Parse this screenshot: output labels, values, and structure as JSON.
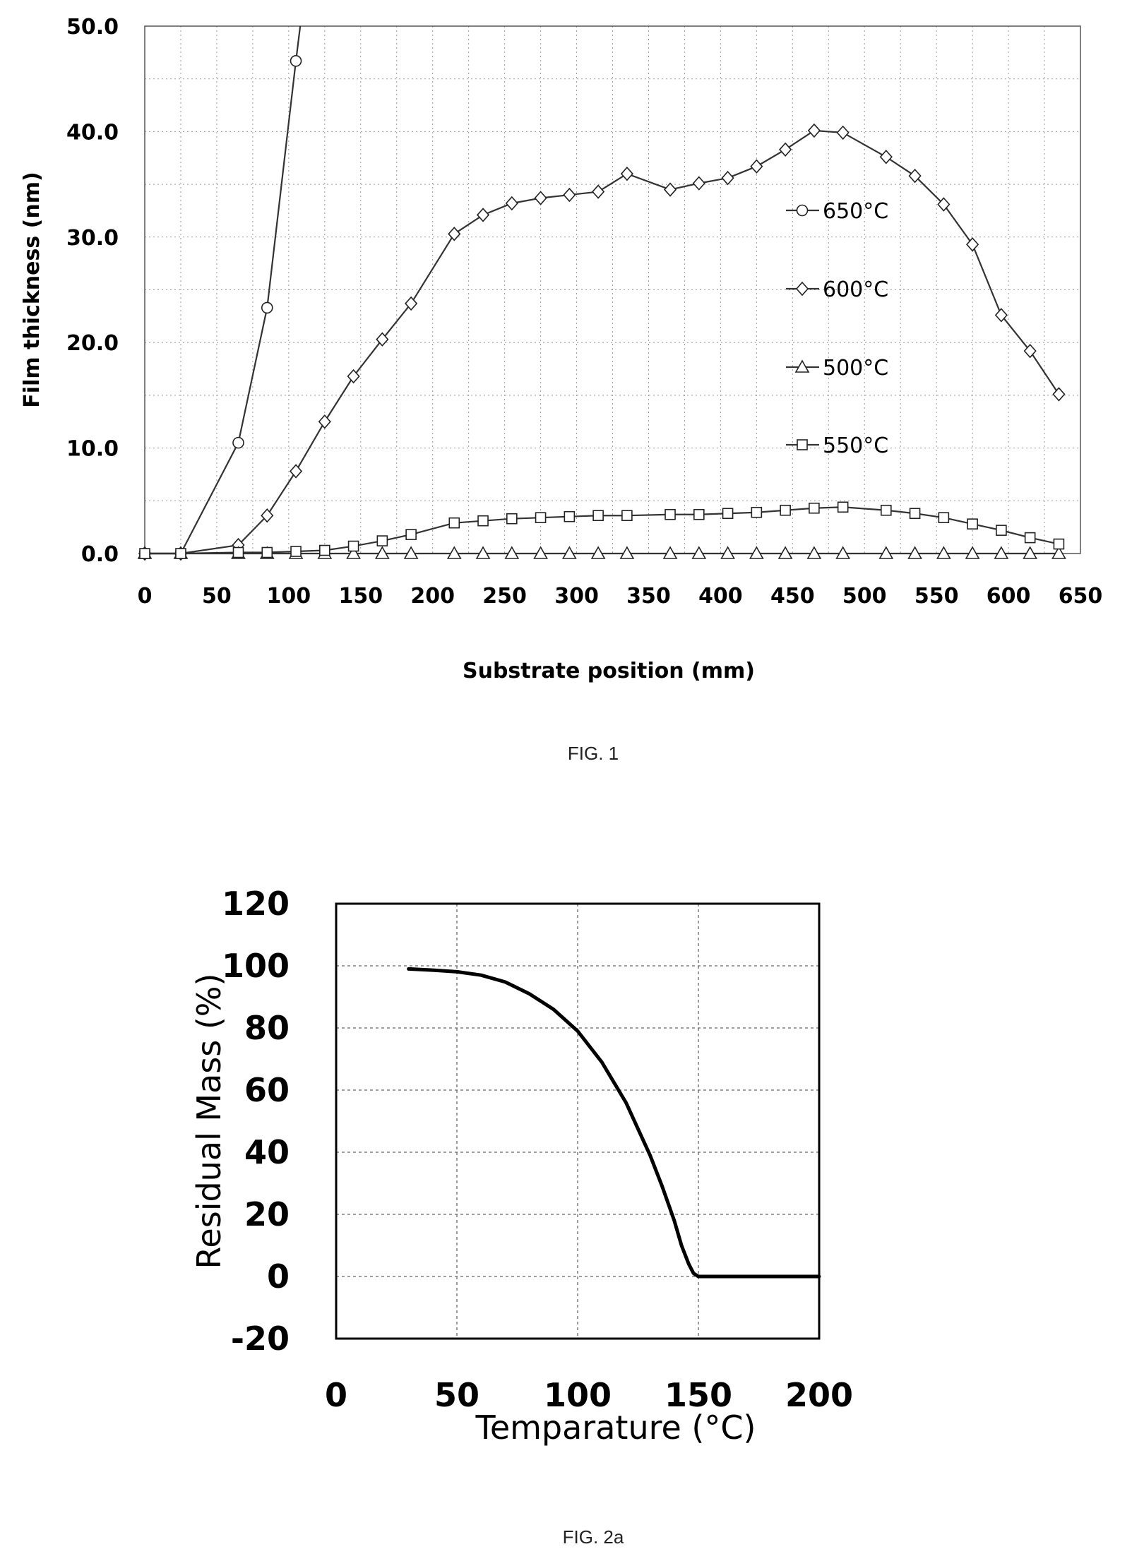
{
  "chart_data": [
    {
      "type": "line",
      "xlabel": "Substrate position (mm)",
      "ylabel": "Film thickness (nm)",
      "xlim": [
        0,
        650
      ],
      "ylim": [
        0,
        50
      ],
      "x_ticks": [
        "0",
        "50",
        "100",
        "150",
        "200",
        "250",
        "300",
        "350",
        "400",
        "450",
        "500",
        "550",
        "600",
        "650"
      ],
      "y_ticks": [
        "0.0",
        "10.0",
        "20.0",
        "30.0",
        "40.0",
        "50.0"
      ],
      "grid": true,
      "legend_position": "right",
      "series": [
        {
          "name": "650°C",
          "marker": "circle",
          "x": [
            0,
            25,
            65,
            85,
            105,
            108
          ],
          "y": [
            0,
            0,
            10.5,
            23.3,
            46.7,
            50
          ]
        },
        {
          "name": "600°C",
          "marker": "diamond",
          "x": [
            0,
            25,
            65,
            85,
            105,
            125,
            145,
            165,
            185,
            215,
            235,
            255,
            275,
            295,
            315,
            335,
            365,
            385,
            405,
            425,
            445,
            465,
            485,
            515,
            535,
            555,
            575,
            595,
            615,
            635
          ],
          "y": [
            0,
            0,
            0.8,
            3.6,
            7.8,
            12.5,
            16.8,
            20.3,
            23.7,
            30.3,
            32.1,
            33.2,
            33.7,
            34.0,
            34.3,
            36.0,
            34.5,
            35.1,
            35.6,
            36.7,
            38.3,
            40.1,
            39.9,
            37.6,
            35.8,
            33.1,
            29.3,
            22.6,
            19.2,
            15.1
          ]
        },
        {
          "name": "500°C",
          "marker": "triangle",
          "x": [
            0,
            25,
            65,
            85,
            105,
            125,
            145,
            165,
            185,
            215,
            235,
            255,
            275,
            295,
            315,
            335,
            365,
            385,
            405,
            425,
            445,
            465,
            485,
            515,
            535,
            555,
            575,
            595,
            615,
            635
          ],
          "y": [
            0,
            0,
            0,
            0,
            0,
            0,
            0,
            0,
            0,
            0,
            0,
            0,
            0,
            0,
            0,
            0,
            0,
            0,
            0,
            0,
            0,
            0,
            0,
            0,
            0,
            0,
            0,
            0,
            0,
            0
          ]
        },
        {
          "name": "550°C",
          "marker": "square",
          "x": [
            0,
            25,
            65,
            85,
            105,
            125,
            145,
            165,
            185,
            215,
            235,
            255,
            275,
            295,
            315,
            335,
            365,
            385,
            405,
            425,
            445,
            465,
            485,
            515,
            535,
            555,
            575,
            595,
            615,
            635
          ],
          "y": [
            0,
            0,
            0.1,
            0.1,
            0.2,
            0.3,
            0.7,
            1.2,
            1.8,
            2.9,
            3.1,
            3.3,
            3.4,
            3.5,
            3.6,
            3.6,
            3.7,
            3.7,
            3.8,
            3.9,
            4.1,
            4.3,
            4.4,
            4.1,
            3.8,
            3.4,
            2.8,
            2.2,
            1.5,
            0.9
          ]
        }
      ]
    },
    {
      "type": "line",
      "xlabel": "Temparature (°C)",
      "ylabel": "Residual Mass (%)",
      "xlim": [
        0,
        200
      ],
      "ylim": [
        -20,
        120
      ],
      "x_ticks": [
        "0",
        "50",
        "100",
        "150",
        "200"
      ],
      "y_ticks": [
        "-20",
        "0",
        "20",
        "40",
        "60",
        "80",
        "100",
        "120"
      ],
      "grid": true,
      "series": [
        {
          "x": [
            30,
            40,
            50,
            60,
            70,
            80,
            90,
            100,
            110,
            120,
            130,
            135,
            140,
            143,
            146,
            148,
            150,
            160,
            180,
            200
          ],
          "y": [
            99,
            98.6,
            98.1,
            97,
            94.8,
            91,
            86,
            79,
            69,
            56,
            39,
            29,
            18,
            10,
            4,
            1,
            0,
            0,
            0,
            0
          ]
        }
      ]
    }
  ],
  "captions": {
    "fig1": "FIG. 1",
    "fig2": "FIG. 2a"
  }
}
